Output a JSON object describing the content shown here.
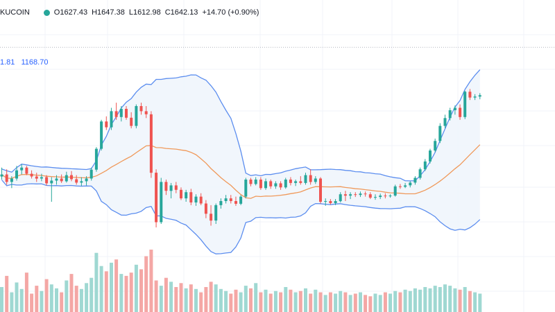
{
  "legend": {
    "symbol": "KUCOIN",
    "open": "O1627.43",
    "high": "H1647.38",
    "low": "L1612.98",
    "close": "C1642.13",
    "change": "+14.70 (+0.90%)"
  },
  "bb_legend": {
    "value1": "1.81",
    "value2": "1168.70"
  },
  "colors": {
    "up": "#26a69a",
    "down": "#ef5350",
    "band_line": "#5b8def",
    "band_fill": "#eef5fc",
    "basis": "#f0995a",
    "vol_up": "#9fd8d2",
    "vol_down": "#f4a7a5",
    "grid": "#f0f3fa",
    "current_price": "#b2b5be"
  },
  "chart_data": {
    "type": "candlestick",
    "price_range": [
      1050,
      1740
    ],
    "current_price": 1642.13,
    "grid": true,
    "candles": [
      {
        "o": 1264,
        "h": 1290,
        "l": 1255,
        "c": 1270
      },
      {
        "o": 1270,
        "h": 1285,
        "l": 1240,
        "c": 1248
      },
      {
        "o": 1248,
        "h": 1265,
        "l": 1230,
        "c": 1258
      },
      {
        "o": 1258,
        "h": 1295,
        "l": 1252,
        "c": 1282
      },
      {
        "o": 1282,
        "h": 1300,
        "l": 1270,
        "c": 1290
      },
      {
        "o": 1290,
        "h": 1295,
        "l": 1268,
        "c": 1272
      },
      {
        "o": 1272,
        "h": 1282,
        "l": 1258,
        "c": 1264
      },
      {
        "o": 1264,
        "h": 1275,
        "l": 1248,
        "c": 1258
      },
      {
        "o": 1258,
        "h": 1272,
        "l": 1250,
        "c": 1262
      },
      {
        "o": 1262,
        "h": 1268,
        "l": 1238,
        "c": 1244
      },
      {
        "o": 1244,
        "h": 1262,
        "l": 1190,
        "c": 1252
      },
      {
        "o": 1252,
        "h": 1268,
        "l": 1240,
        "c": 1258
      },
      {
        "o": 1258,
        "h": 1270,
        "l": 1245,
        "c": 1250
      },
      {
        "o": 1250,
        "h": 1278,
        "l": 1246,
        "c": 1268
      },
      {
        "o": 1268,
        "h": 1280,
        "l": 1250,
        "c": 1256
      },
      {
        "o": 1256,
        "h": 1268,
        "l": 1240,
        "c": 1246
      },
      {
        "o": 1246,
        "h": 1262,
        "l": 1236,
        "c": 1250
      },
      {
        "o": 1250,
        "h": 1265,
        "l": 1238,
        "c": 1258
      },
      {
        "o": 1258,
        "h": 1290,
        "l": 1252,
        "c": 1284
      },
      {
        "o": 1284,
        "h": 1350,
        "l": 1278,
        "c": 1345
      },
      {
        "o": 1345,
        "h": 1430,
        "l": 1340,
        "c": 1425
      },
      {
        "o": 1425,
        "h": 1440,
        "l": 1400,
        "c": 1408
      },
      {
        "o": 1408,
        "h": 1465,
        "l": 1400,
        "c": 1455
      },
      {
        "o": 1455,
        "h": 1480,
        "l": 1430,
        "c": 1438
      },
      {
        "o": 1438,
        "h": 1470,
        "l": 1425,
        "c": 1462
      },
      {
        "o": 1462,
        "h": 1470,
        "l": 1430,
        "c": 1436
      },
      {
        "o": 1436,
        "h": 1452,
        "l": 1405,
        "c": 1412
      },
      {
        "o": 1412,
        "h": 1475,
        "l": 1405,
        "c": 1470
      },
      {
        "o": 1470,
        "h": 1480,
        "l": 1445,
        "c": 1455
      },
      {
        "o": 1455,
        "h": 1470,
        "l": 1435,
        "c": 1446
      },
      {
        "o": 1446,
        "h": 1455,
        "l": 1260,
        "c": 1275
      },
      {
        "o": 1275,
        "h": 1285,
        "l": 1115,
        "c": 1130
      },
      {
        "o": 1130,
        "h": 1260,
        "l": 1125,
        "c": 1248
      },
      {
        "o": 1248,
        "h": 1255,
        "l": 1210,
        "c": 1222
      },
      {
        "o": 1222,
        "h": 1245,
        "l": 1200,
        "c": 1238
      },
      {
        "o": 1238,
        "h": 1248,
        "l": 1215,
        "c": 1225
      },
      {
        "o": 1225,
        "h": 1232,
        "l": 1195,
        "c": 1200
      },
      {
        "o": 1200,
        "h": 1225,
        "l": 1190,
        "c": 1218
      },
      {
        "o": 1218,
        "h": 1228,
        "l": 1180,
        "c": 1188
      },
      {
        "o": 1188,
        "h": 1212,
        "l": 1178,
        "c": 1205
      },
      {
        "o": 1205,
        "h": 1215,
        "l": 1180,
        "c": 1185
      },
      {
        "o": 1185,
        "h": 1195,
        "l": 1142,
        "c": 1155
      },
      {
        "o": 1155,
        "h": 1180,
        "l": 1120,
        "c": 1135
      },
      {
        "o": 1135,
        "h": 1185,
        "l": 1125,
        "c": 1180
      },
      {
        "o": 1180,
        "h": 1200,
        "l": 1170,
        "c": 1192
      },
      {
        "o": 1192,
        "h": 1210,
        "l": 1185,
        "c": 1200
      },
      {
        "o": 1200,
        "h": 1210,
        "l": 1185,
        "c": 1192
      },
      {
        "o": 1192,
        "h": 1205,
        "l": 1178,
        "c": 1184
      },
      {
        "o": 1184,
        "h": 1210,
        "l": 1180,
        "c": 1205
      },
      {
        "o": 1205,
        "h": 1260,
        "l": 1200,
        "c": 1255
      },
      {
        "o": 1255,
        "h": 1260,
        "l": 1235,
        "c": 1242
      },
      {
        "o": 1242,
        "h": 1262,
        "l": 1238,
        "c": 1255
      },
      {
        "o": 1255,
        "h": 1262,
        "l": 1225,
        "c": 1230
      },
      {
        "o": 1230,
        "h": 1258,
        "l": 1225,
        "c": 1250
      },
      {
        "o": 1250,
        "h": 1255,
        "l": 1228,
        "c": 1235
      },
      {
        "o": 1235,
        "h": 1250,
        "l": 1228,
        "c": 1244
      },
      {
        "o": 1244,
        "h": 1250,
        "l": 1225,
        "c": 1232
      },
      {
        "o": 1232,
        "h": 1260,
        "l": 1228,
        "c": 1255
      },
      {
        "o": 1255,
        "h": 1262,
        "l": 1238,
        "c": 1245
      },
      {
        "o": 1245,
        "h": 1255,
        "l": 1236,
        "c": 1250
      },
      {
        "o": 1250,
        "h": 1265,
        "l": 1240,
        "c": 1245
      },
      {
        "o": 1245,
        "h": 1275,
        "l": 1240,
        "c": 1268
      },
      {
        "o": 1268,
        "h": 1285,
        "l": 1240,
        "c": 1248
      },
      {
        "o": 1248,
        "h": 1265,
        "l": 1242,
        "c": 1258
      },
      {
        "o": 1258,
        "h": 1262,
        "l": 1185,
        "c": 1190
      },
      {
        "o": 1190,
        "h": 1200,
        "l": 1178,
        "c": 1192
      },
      {
        "o": 1192,
        "h": 1198,
        "l": 1182,
        "c": 1186
      },
      {
        "o": 1186,
        "h": 1198,
        "l": 1180,
        "c": 1192
      },
      {
        "o": 1192,
        "h": 1218,
        "l": 1188,
        "c": 1212
      },
      {
        "o": 1212,
        "h": 1222,
        "l": 1192,
        "c": 1208
      },
      {
        "o": 1208,
        "h": 1218,
        "l": 1198,
        "c": 1212
      },
      {
        "o": 1212,
        "h": 1218,
        "l": 1204,
        "c": 1210
      },
      {
        "o": 1210,
        "h": 1220,
        "l": 1204,
        "c": 1214
      },
      {
        "o": 1214,
        "h": 1220,
        "l": 1205,
        "c": 1212
      },
      {
        "o": 1212,
        "h": 1218,
        "l": 1198,
        "c": 1202
      },
      {
        "o": 1202,
        "h": 1212,
        "l": 1196,
        "c": 1204
      },
      {
        "o": 1204,
        "h": 1214,
        "l": 1198,
        "c": 1208
      },
      {
        "o": 1208,
        "h": 1215,
        "l": 1200,
        "c": 1206
      },
      {
        "o": 1206,
        "h": 1212,
        "l": 1202,
        "c": 1208
      },
      {
        "o": 1208,
        "h": 1240,
        "l": 1205,
        "c": 1235
      },
      {
        "o": 1235,
        "h": 1242,
        "l": 1228,
        "c": 1234
      },
      {
        "o": 1234,
        "h": 1245,
        "l": 1230,
        "c": 1238
      },
      {
        "o": 1238,
        "h": 1250,
        "l": 1232,
        "c": 1246
      },
      {
        "o": 1246,
        "h": 1265,
        "l": 1240,
        "c": 1260
      },
      {
        "o": 1260,
        "h": 1290,
        "l": 1255,
        "c": 1285
      },
      {
        "o": 1285,
        "h": 1315,
        "l": 1280,
        "c": 1308
      },
      {
        "o": 1308,
        "h": 1345,
        "l": 1302,
        "c": 1340
      },
      {
        "o": 1340,
        "h": 1375,
        "l": 1335,
        "c": 1368
      },
      {
        "o": 1368,
        "h": 1420,
        "l": 1362,
        "c": 1412
      },
      {
        "o": 1412,
        "h": 1445,
        "l": 1405,
        "c": 1435
      },
      {
        "o": 1435,
        "h": 1465,
        "l": 1428,
        "c": 1458
      },
      {
        "o": 1458,
        "h": 1472,
        "l": 1445,
        "c": 1465
      },
      {
        "o": 1465,
        "h": 1475,
        "l": 1430,
        "c": 1438
      },
      {
        "o": 1438,
        "h": 1515,
        "l": 1432,
        "c": 1512
      },
      {
        "o": 1512,
        "h": 1520,
        "l": 1488,
        "c": 1495
      },
      {
        "o": 1495,
        "h": 1505,
        "l": 1488,
        "c": 1498
      },
      {
        "o": 1498,
        "h": 1508,
        "l": 1490,
        "c": 1502
      }
    ],
    "volume": [
      38,
      55,
      30,
      45,
      35,
      60,
      28,
      40,
      32,
      50,
      42,
      36,
      30,
      48,
      58,
      40,
      35,
      44,
      52,
      90,
      70,
      62,
      75,
      80,
      58,
      55,
      60,
      72,
      65,
      85,
      95,
      48,
      40,
      52,
      46,
      38,
      44,
      36,
      42,
      35,
      30,
      38,
      46,
      42,
      35,
      32,
      28,
      34,
      30,
      40,
      36,
      44,
      30,
      34,
      28,
      32,
      30,
      38,
      34,
      30,
      32,
      36,
      28,
      34,
      30,
      26,
      30,
      28,
      32,
      30,
      26,
      28,
      30,
      26,
      24,
      28,
      26,
      30,
      28,
      32,
      30,
      34,
      32,
      36,
      34,
      38,
      36,
      40,
      38,
      42,
      40,
      36,
      34,
      38,
      32,
      30,
      28
    ]
  }
}
